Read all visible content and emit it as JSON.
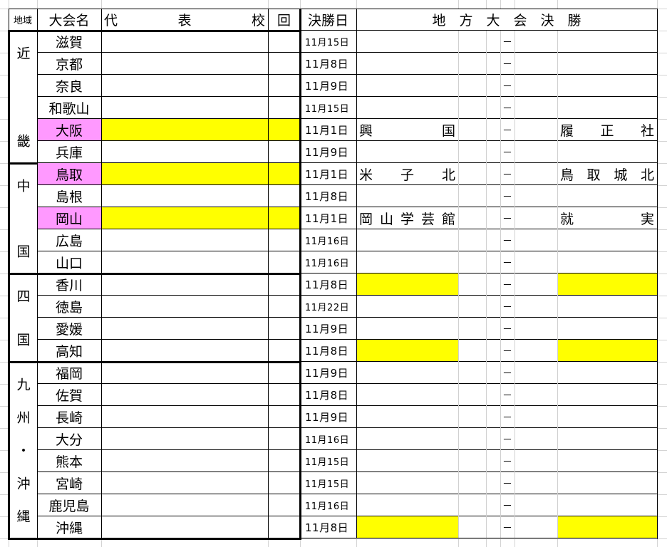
{
  "header": {
    "region": "地域",
    "tournament": "大会名",
    "representative": "代　　　表　　　校",
    "count": "回",
    "final_date": "決勝日",
    "regional_final": "地　方　大　会　決　勝"
  },
  "colors": {
    "pink": "#ff99ff",
    "yellow": "#ffff00"
  },
  "regions": [
    {
      "label": "近畿",
      "rows": 6
    },
    {
      "label": "中国",
      "rows": 5
    },
    {
      "label": "四国",
      "rows": 4
    },
    {
      "label": "九州・沖縄",
      "rows": 8
    }
  ],
  "rows": [
    {
      "name": "滋賀",
      "date": "11月15日",
      "dash": "－"
    },
    {
      "name": "京都",
      "date": "11月8日",
      "dash": "－"
    },
    {
      "name": "奈良",
      "date": "11月9日",
      "dash": "－"
    },
    {
      "name": "和歌山",
      "date": "11月15日",
      "dash": "－"
    },
    {
      "name": "大阪",
      "date": "11月1日",
      "dash": "－",
      "pink": true,
      "rep_yellow": true,
      "team1": "興　　国",
      "team2": "履　正　社"
    },
    {
      "name": "兵庫",
      "date": "11月9日",
      "dash": "－"
    },
    {
      "name": "鳥取",
      "date": "11月1日",
      "dash": "－",
      "pink": true,
      "rep_yellow": true,
      "team1": "米　子　北",
      "team2": "鳥取城北"
    },
    {
      "name": "島根",
      "date": "11月8日",
      "dash": "－"
    },
    {
      "name": "岡山",
      "date": "11月1日",
      "dash": "－",
      "pink": true,
      "rep_yellow": true,
      "team1": "岡山学芸館",
      "team2": "就　　実"
    },
    {
      "name": "広島",
      "date": "11月16日",
      "dash": "－"
    },
    {
      "name": "山口",
      "date": "11月16日",
      "dash": "－"
    },
    {
      "name": "香川",
      "date": "11月8日",
      "dash": "－",
      "final_yellow": true
    },
    {
      "name": "徳島",
      "date": "11月22日",
      "dash": "－"
    },
    {
      "name": "愛媛",
      "date": "11月9日",
      "dash": "－"
    },
    {
      "name": "高知",
      "date": "11月8日",
      "dash": "－",
      "final_yellow": true
    },
    {
      "name": "福岡",
      "date": "11月9日",
      "dash": "－"
    },
    {
      "name": "佐賀",
      "date": "11月8日",
      "dash": "－"
    },
    {
      "name": "長崎",
      "date": "11月9日",
      "dash": "－"
    },
    {
      "name": "大分",
      "date": "11月16日",
      "dash": "－"
    },
    {
      "name": "熊本",
      "date": "11月15日",
      "dash": "－"
    },
    {
      "name": "宮崎",
      "date": "11月15日",
      "dash": "－"
    },
    {
      "name": "鹿児島",
      "date": "11月16日",
      "dash": "－"
    },
    {
      "name": "沖縄",
      "date": "11月8日",
      "dash": "－",
      "final_yellow": true
    }
  ]
}
